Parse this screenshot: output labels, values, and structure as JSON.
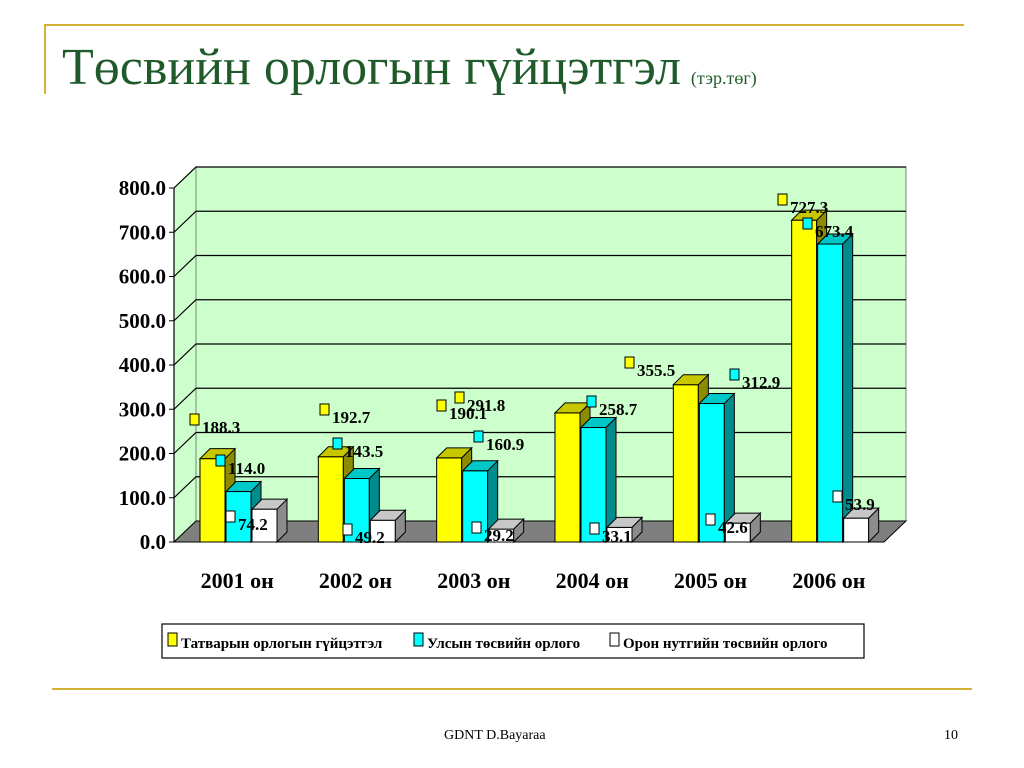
{
  "slide": {
    "title": "Төсвийн орлогын гүйцэтгэл",
    "title_unit": "(тэр.төг)",
    "footer_author": "GDNT    D.Bayaraa",
    "page_number": "10"
  },
  "colors": {
    "plot_background": "#ccffcc",
    "floor": "#7f7f7f",
    "accent_line": "#d6b13a",
    "title": "#1f5b2a"
  },
  "chart_data": {
    "type": "bar",
    "title": "",
    "xlabel": "",
    "ylabel": "",
    "ylim": [
      0,
      800
    ],
    "yticks": [
      "0.0",
      "100.0",
      "200.0",
      "300.0",
      "400.0",
      "500.0",
      "600.0",
      "700.0",
      "800.0"
    ],
    "grid": true,
    "legend_position": "bottom",
    "categories": [
      "2001 он",
      "2002 он",
      "2003 он",
      "2004 он",
      "2005 он",
      "2006 он"
    ],
    "series": [
      {
        "name": "Татварын орлогын гүйцэтгэл",
        "color": "#ffff00",
        "values": [
          188.3,
          192.7,
          190.1,
          291.8,
          355.5,
          727.3
        ]
      },
      {
        "name": "Улсын төсвийн орлого",
        "color": "#00ffff",
        "values": [
          114.0,
          143.5,
          160.9,
          258.7,
          312.9,
          673.4
        ]
      },
      {
        "name": "Орон нутгийн төсвийн орлого",
        "color": "#ffffff",
        "values": [
          74.2,
          49.2,
          29.2,
          33.1,
          42.6,
          53.9
        ]
      }
    ]
  }
}
